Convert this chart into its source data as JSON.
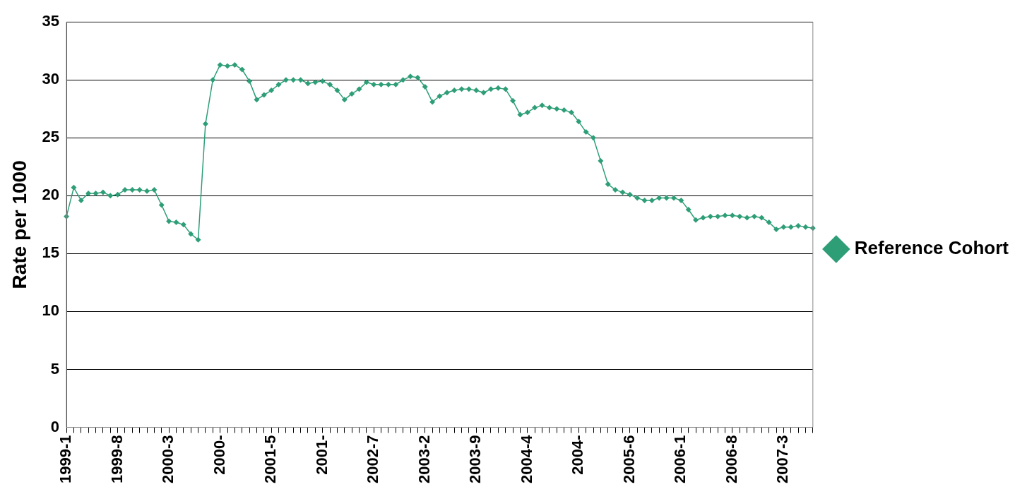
{
  "chart_data": {
    "type": "line",
    "ylabel": "Rate per 1000",
    "categories": [
      "1999-1",
      null,
      null,
      null,
      null,
      null,
      null,
      "1999-8",
      null,
      null,
      null,
      null,
      null,
      null,
      "2000-3",
      null,
      null,
      null,
      null,
      null,
      null,
      "2000-",
      null,
      null,
      null,
      null,
      null,
      null,
      "2001-5",
      null,
      null,
      null,
      null,
      null,
      null,
      "2001-",
      null,
      null,
      null,
      null,
      null,
      null,
      "2002-7",
      null,
      null,
      null,
      null,
      null,
      null,
      "2003-2",
      null,
      null,
      null,
      null,
      null,
      null,
      "2003-9",
      null,
      null,
      null,
      null,
      null,
      null,
      "2004-4",
      null,
      null,
      null,
      null,
      null,
      null,
      "2004-",
      null,
      null,
      null,
      null,
      null,
      null,
      "2005-6",
      null,
      null,
      null,
      null,
      null,
      null,
      "2006-1",
      null,
      null,
      null,
      null,
      null,
      null,
      "2006-8",
      null,
      null,
      null,
      null,
      null,
      null,
      "2007-3",
      null,
      null,
      null,
      null
    ],
    "series": [
      {
        "name": "Reference Cohort",
        "color": "#2e9e77",
        "values": [
          18.2,
          20.7,
          19.6,
          20.2,
          20.2,
          20.3,
          20.0,
          20.1,
          20.5,
          20.5,
          20.5,
          20.4,
          20.5,
          19.2,
          17.8,
          17.7,
          17.5,
          16.7,
          16.2,
          26.2,
          30.0,
          31.3,
          31.2,
          31.3,
          30.9,
          29.9,
          28.3,
          28.7,
          29.1,
          29.6,
          30.0,
          30.0,
          30.0,
          29.7,
          29.8,
          29.9,
          29.6,
          29.1,
          28.3,
          28.8,
          29.2,
          29.8,
          29.6,
          29.6,
          29.6,
          29.6,
          30.0,
          30.3,
          30.2,
          29.4,
          28.1,
          28.6,
          28.9,
          29.1,
          29.2,
          29.2,
          29.1,
          28.9,
          29.2,
          29.3,
          29.2,
          28.2,
          27.0,
          27.2,
          27.6,
          27.8,
          27.6,
          27.5,
          27.4,
          27.2,
          26.4,
          25.5,
          25.0,
          23.0,
          21.0,
          20.5,
          20.3,
          20.1,
          19.8,
          19.6,
          19.6,
          19.8,
          19.8,
          19.8,
          19.6,
          18.8,
          17.9,
          18.1,
          18.2,
          18.2,
          18.3,
          18.3,
          18.2,
          18.1,
          18.2,
          18.1,
          17.7,
          17.1,
          17.3,
          17.3,
          17.4,
          17.3,
          17.2
        ]
      }
    ],
    "ylim": [
      0,
      35
    ],
    "yticks": [
      0,
      5,
      10,
      15,
      20,
      25,
      30,
      35
    ],
    "grid": "y",
    "legend": "right",
    "marker": "diamond",
    "line_style": "solid"
  }
}
